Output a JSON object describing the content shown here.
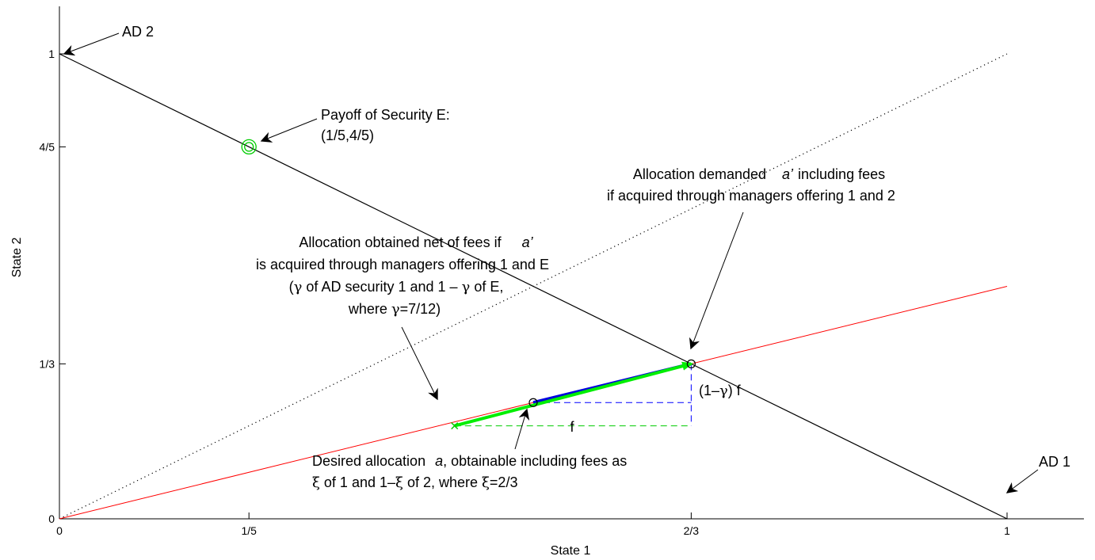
{
  "chart_data": {
    "type": "line",
    "xlabel": "State 1",
    "ylabel": "State 2",
    "xlim": [
      0,
      1
    ],
    "ylim": [
      0,
      1
    ],
    "xticks": [
      {
        "value": 0,
        "label": "0"
      },
      {
        "value": 0.2,
        "label": "1/5"
      },
      {
        "value": 0.6667,
        "label": "2/3"
      },
      {
        "value": 1,
        "label": "1"
      }
    ],
    "yticks": [
      {
        "value": 0,
        "label": "0"
      },
      {
        "value": 0.3333,
        "label": "1/3"
      },
      {
        "value": 0.8,
        "label": "4/5"
      },
      {
        "value": 1,
        "label": "1"
      }
    ],
    "grid": false,
    "colors": {
      "budget_line": "#000000",
      "diagonal": "#000000",
      "ray": "#ff0000",
      "net_of_fees": "#00ee00",
      "desired": "#0000dd",
      "fee_dashed_blue": "#0000ff",
      "fee_dashed_green": "#00cc00"
    },
    "lines": [
      {
        "id": "budget-line",
        "style": "solid",
        "color": "#000000",
        "points": [
          [
            0,
            1
          ],
          [
            1,
            0
          ]
        ]
      },
      {
        "id": "diagonal-line",
        "style": "dotted",
        "color": "#000000",
        "points": [
          [
            0,
            0
          ],
          [
            1,
            1
          ]
        ]
      },
      {
        "id": "ray-line",
        "style": "solid",
        "color": "#ff0000",
        "points": [
          [
            0,
            0
          ],
          [
            1,
            0.5
          ]
        ]
      },
      {
        "id": "net-of-fees-arrow",
        "style": "solid-thick",
        "color": "#00ee00",
        "points": [
          [
            0.417,
            0.2
          ],
          [
            0.6667,
            0.3333
          ]
        ]
      },
      {
        "id": "desired-allocation-segment",
        "style": "solid-thick",
        "color": "#0000dd",
        "points": [
          [
            0.5,
            0.25
          ],
          [
            0.6667,
            0.3333
          ]
        ]
      },
      {
        "id": "fee-horizontal-blue",
        "style": "dashed",
        "color": "#0000ff",
        "points": [
          [
            0.5,
            0.25
          ],
          [
            0.6667,
            0.25
          ]
        ]
      },
      {
        "id": "fee-vertical-blue",
        "style": "dashed",
        "color": "#0000ff",
        "points": [
          [
            0.6667,
            0.3333
          ],
          [
            0.6667,
            0.2
          ]
        ]
      },
      {
        "id": "fee-horizontal-green",
        "style": "dashed",
        "color": "#00cc00",
        "points": [
          [
            0.417,
            0.2
          ],
          [
            0.6667,
            0.2
          ]
        ]
      }
    ],
    "points": [
      {
        "id": "security-e",
        "x": 0.2,
        "y": 0.8,
        "marker": "double-circle",
        "color": "#00cc00"
      },
      {
        "id": "allocation-a-prime",
        "x": 0.6667,
        "y": 0.3333,
        "marker": "circle",
        "color": "#000000"
      },
      {
        "id": "allocation-a",
        "x": 0.5,
        "y": 0.25,
        "marker": "circle",
        "color": "#000000"
      },
      {
        "id": "net-allocation",
        "x": 0.417,
        "y": 0.2,
        "marker": "x",
        "color": "#00cc00"
      }
    ],
    "annotations": {
      "ad2": "AD 2",
      "ad1": "AD 1",
      "security_e_line1": "Payoff of Security E:",
      "security_e_line2": "(1/5,4/5)",
      "demanded_line1_a": "Allocation demanded",
      "demanded_line1_b": "a’",
      "demanded_line1_c": "including  fees",
      "demanded_line2": "if acquired through managers offering 1 and 2",
      "net_line1_a": "Allocation obtained net of fees if",
      "net_line1_b": "a’",
      "net_line2": "is acquired through managers offering 1 and E",
      "net_line3_a": "(",
      "net_line3_b": "γ",
      "net_line3_c": " of AD security 1 and 1 – ",
      "net_line3_d": "γ",
      "net_line3_e": " of E,",
      "net_line4_a": "where ",
      "net_line4_b": "γ",
      "net_line4_c": "=7/12)",
      "fee_vertical_a": "(1–",
      "fee_vertical_b": "γ",
      "fee_vertical_c": ") f",
      "fee_horizontal": "f",
      "desired_line1_a": "Desired allocation",
      "desired_line1_b": "a",
      "desired_line1_c": ", obtainable including fees as",
      "desired_line2_a": "ξ",
      "desired_line2_b": " of 1 and 1–",
      "desired_line2_c": "ξ",
      "desired_line2_d": " of 2, where ",
      "desired_line2_e": "ξ",
      "desired_line2_f": "=2/3"
    }
  }
}
